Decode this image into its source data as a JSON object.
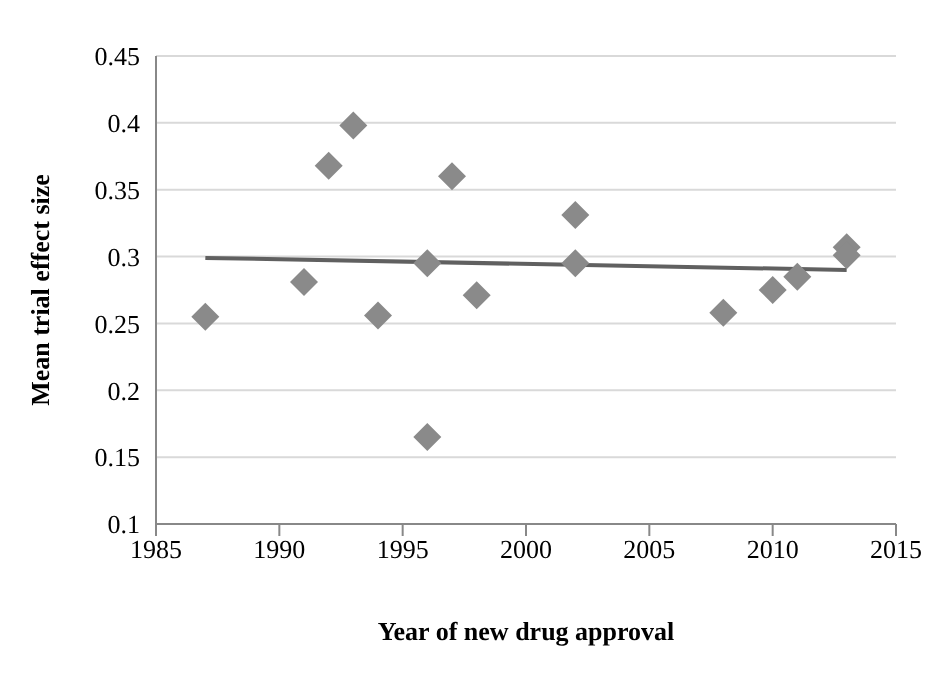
{
  "chart_data": {
    "type": "scatter",
    "xlabel": "Year of new drug approval",
    "ylabel": "Mean trial effect size",
    "xlim": [
      1985,
      2015
    ],
    "xticks": [
      1985,
      1990,
      1995,
      2000,
      2005,
      2010,
      2015
    ],
    "ylim": [
      0.1,
      0.45
    ],
    "yticks": [
      0.1,
      0.15,
      0.2,
      0.25,
      0.3,
      0.35,
      0.4,
      0.45
    ],
    "grid": "y",
    "marker": "diamond",
    "series": [
      {
        "color": "#8a8a8a",
        "x": [
          1987,
          1991,
          1992,
          1993,
          1994,
          1996,
          1996,
          1997,
          1998,
          2002,
          2002,
          2008,
          2010,
          2011,
          2013,
          2013
        ],
        "values": [
          0.255,
          0.281,
          0.368,
          0.398,
          0.256,
          0.295,
          0.165,
          0.36,
          0.271,
          0.331,
          0.295,
          0.258,
          0.275,
          0.285,
          0.307,
          0.301
        ]
      },
      {
        "type": "line",
        "marker": "none",
        "color": "#606060",
        "x": [
          1987,
          2013
        ],
        "values": [
          0.299,
          0.29
        ]
      }
    ]
  }
}
